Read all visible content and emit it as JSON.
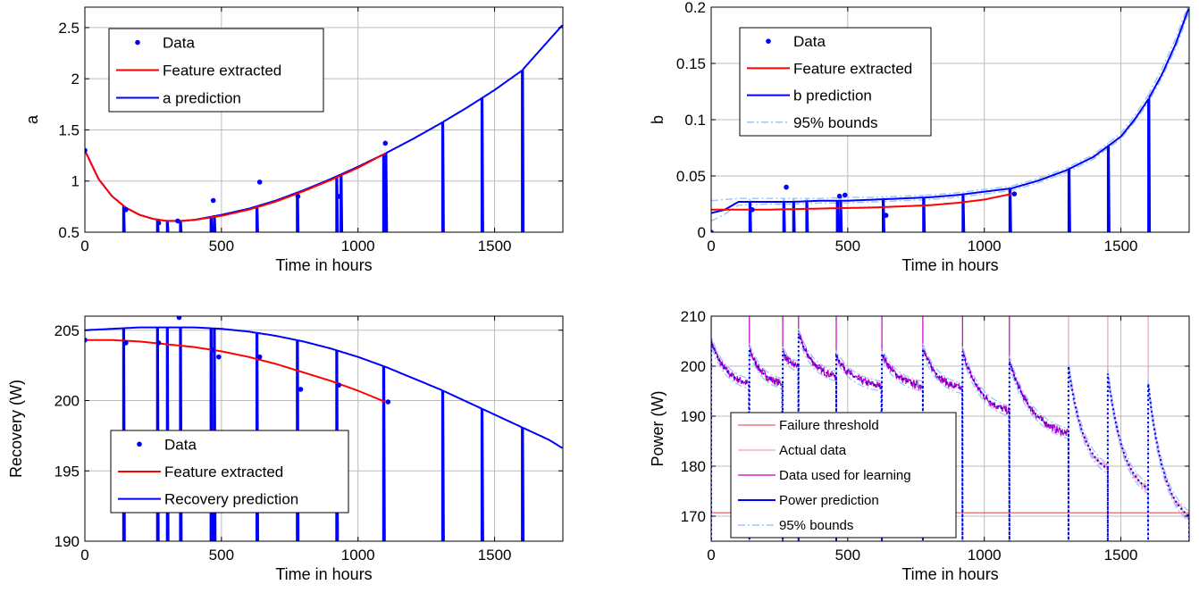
{
  "colors": {
    "data": "#0000ff",
    "feature": "#ff0000",
    "prediction": "#0000ff",
    "bounds": "#9dc3ff",
    "threshold": "#e83a3a",
    "actual": "#f59ac8",
    "learning": "#c000c0",
    "grid": "#bdbdbd"
  },
  "chart_data": [
    {
      "id": "a",
      "type": "line",
      "xlabel": "Time in hours",
      "ylabel": "a",
      "xlim": [
        0,
        1750
      ],
      "ylim": [
        0.5,
        2.7
      ],
      "xticks": [
        0,
        500,
        1000,
        1500
      ],
      "yticks": [
        0.5,
        1,
        1.5,
        2,
        2.5
      ],
      "ytick_labels": [
        "0.5",
        "1",
        "1.5",
        "2",
        "2.5"
      ],
      "grid": true,
      "legend": {
        "position": "top-left",
        "entries": [
          "Data",
          "Feature extracted",
          "a prediction"
        ]
      },
      "series": [
        {
          "name": "Data",
          "style": "markers",
          "x": [
            0,
            150,
            270,
            340,
            470,
            640,
            780,
            930,
            1100
          ],
          "y": [
            1.3,
            0.72,
            0.59,
            0.61,
            0.81,
            0.99,
            0.85,
            0.85,
            1.37
          ]
        },
        {
          "name": "Feature extracted",
          "style": "line",
          "x": [
            0,
            50,
            100,
            150,
            200,
            250,
            300,
            350,
            400,
            500,
            600,
            700,
            800,
            900,
            1000,
            1100
          ],
          "y": [
            1.3,
            1.02,
            0.85,
            0.74,
            0.67,
            0.63,
            0.61,
            0.61,
            0.62,
            0.66,
            0.72,
            0.8,
            0.9,
            1.01,
            1.13,
            1.27
          ]
        },
        {
          "name": "a prediction",
          "style": "line",
          "x": [
            0,
            50,
            100,
            150,
            200,
            250,
            300,
            350,
            400,
            500,
            600,
            700,
            800,
            900,
            1000,
            1100,
            1200,
            1300,
            1400,
            1500,
            1600,
            1700,
            1750
          ],
          "y": [
            1.3,
            1.02,
            0.85,
            0.74,
            0.67,
            0.63,
            0.61,
            0.61,
            0.62,
            0.67,
            0.73,
            0.81,
            0.91,
            1.02,
            1.14,
            1.27,
            1.41,
            1.56,
            1.72,
            1.89,
            2.08,
            2.38,
            2.53
          ],
          "dropouts": [
            140,
            262,
            300,
            345,
            458,
            470,
            625,
            775,
            920,
            935,
            1092,
            1100,
            1308,
            1452,
            1600
          ]
        }
      ]
    },
    {
      "id": "b",
      "type": "line",
      "xlabel": "Time in hours",
      "ylabel": "b",
      "xlim": [
        0,
        1750
      ],
      "ylim": [
        0,
        0.2
      ],
      "xticks": [
        0,
        500,
        1000,
        1500
      ],
      "yticks": [
        0,
        0.05,
        0.1,
        0.15,
        0.2
      ],
      "ytick_labels": [
        "0",
        "0.05",
        "0.1",
        "0.15",
        "0.2"
      ],
      "grid": true,
      "legend": {
        "position": "top-left",
        "entries": [
          "Data",
          "Feature extracted",
          "b prediction",
          "95% bounds"
        ]
      },
      "series": [
        {
          "name": "Data",
          "style": "markers",
          "x": [
            0,
            150,
            275,
            470,
            490,
            640,
            1110
          ],
          "y": [
            0.0,
            0.02,
            0.04,
            0.032,
            0.033,
            0.015,
            0.034
          ]
        },
        {
          "name": "Feature extracted",
          "style": "line",
          "x": [
            0,
            200,
            400,
            600,
            800,
            900,
            1000,
            1100
          ],
          "y": [
            0.02,
            0.02,
            0.021,
            0.022,
            0.024,
            0.026,
            0.029,
            0.034
          ]
        },
        {
          "name": "b prediction",
          "style": "line",
          "x": [
            0,
            50,
            100,
            200,
            300,
            400,
            500,
            600,
            700,
            800,
            900,
            1000,
            1100,
            1200,
            1300,
            1400,
            1500,
            1550,
            1600,
            1650,
            1700,
            1750
          ],
          "y": [
            0.017,
            0.02,
            0.027,
            0.027,
            0.027,
            0.028,
            0.028,
            0.029,
            0.03,
            0.031,
            0.033,
            0.036,
            0.039,
            0.046,
            0.055,
            0.067,
            0.085,
            0.1,
            0.118,
            0.14,
            0.167,
            0.2
          ],
          "dropouts": [
            140,
            262,
            300,
            345,
            458,
            470,
            625,
            775,
            920,
            1092,
            1308,
            1452,
            1600
          ]
        },
        {
          "name": "95% bounds",
          "style": "dashdot",
          "x": [
            0,
            50,
            100,
            200,
            300,
            400,
            500,
            600,
            700,
            800,
            900,
            1000,
            1100,
            1200,
            1300,
            1400,
            1500,
            1550,
            1600,
            1650,
            1700,
            1750
          ],
          "y_low": [
            0.01,
            0.016,
            0.024,
            0.025,
            0.025,
            0.026,
            0.026,
            0.027,
            0.028,
            0.029,
            0.031,
            0.034,
            0.037,
            0.044,
            0.053,
            0.065,
            0.083,
            0.098,
            0.115,
            0.137,
            0.163,
            0.196
          ],
          "y_high": [
            0.028,
            0.029,
            0.03,
            0.03,
            0.03,
            0.03,
            0.031,
            0.031,
            0.032,
            0.033,
            0.035,
            0.038,
            0.041,
            0.048,
            0.057,
            0.069,
            0.088,
            0.103,
            0.122,
            0.145,
            0.172,
            0.204
          ]
        }
      ]
    },
    {
      "id": "recovery",
      "type": "line",
      "xlabel": "Time in hours",
      "ylabel": "Recovery (W)",
      "xlim": [
        0,
        1750
      ],
      "ylim": [
        190,
        206
      ],
      "xticks": [
        0,
        500,
        1000,
        1500
      ],
      "yticks": [
        190,
        195,
        200,
        205
      ],
      "ytick_labels": [
        "190",
        "195",
        "200",
        "205"
      ],
      "grid": true,
      "legend": {
        "position": "bottom-left",
        "entries": [
          "Data",
          "Feature extracted",
          "Recovery prediction"
        ]
      },
      "series": [
        {
          "name": "Data",
          "style": "markers",
          "x": [
            0,
            150,
            270,
            345,
            470,
            490,
            640,
            790,
            930,
            1110
          ],
          "y": [
            204.3,
            204.1,
            204.1,
            205.9,
            203.6,
            203.1,
            203.1,
            200.8,
            201.1,
            199.9
          ]
        },
        {
          "name": "Feature extracted",
          "style": "line",
          "x": [
            0,
            100,
            200,
            300,
            400,
            500,
            600,
            700,
            800,
            900,
            1000,
            1100
          ],
          "y": [
            204.3,
            204.3,
            204.2,
            204.0,
            203.8,
            203.5,
            203.1,
            202.6,
            202.0,
            201.4,
            200.7,
            199.9
          ]
        },
        {
          "name": "Recovery prediction",
          "style": "line",
          "x": [
            0,
            100,
            200,
            300,
            400,
            500,
            600,
            700,
            800,
            900,
            1000,
            1100,
            1200,
            1300,
            1400,
            1500,
            1600,
            1700,
            1750
          ],
          "y": [
            205.0,
            205.1,
            205.2,
            205.2,
            205.2,
            205.1,
            204.9,
            204.6,
            204.2,
            203.7,
            203.1,
            202.4,
            201.6,
            200.8,
            199.9,
            199.0,
            198.1,
            197.2,
            196.6
          ],
          "dropouts": [
            140,
            262,
            300,
            345,
            458,
            470,
            625,
            775,
            920,
            1092,
            1308,
            1452,
            1600
          ]
        }
      ]
    },
    {
      "id": "power",
      "type": "line",
      "xlabel": "Time in hours",
      "ylabel": "Power (W)",
      "xlim": [
        0,
        1750
      ],
      "ylim": [
        165,
        210
      ],
      "xticks": [
        0,
        500,
        1000,
        1500
      ],
      "yticks": [
        170,
        180,
        190,
        200,
        210
      ],
      "ytick_labels": [
        "170",
        "180",
        "190",
        "200",
        "210"
      ],
      "grid": true,
      "legend": {
        "position": "bottom-left",
        "entries": [
          "Failure threshold",
          "Actual data",
          "Data used for learning",
          "Power prediction",
          "95% bounds"
        ]
      },
      "failure_threshold": 170.7,
      "cycles": [
        {
          "start": 0,
          "end": 140,
          "y_start": 205.0,
          "y_end": 196.5
        },
        {
          "start": 140,
          "end": 262,
          "y_start": 203.5,
          "y_end": 196.5
        },
        {
          "start": 262,
          "end": 320,
          "y_start": 203.0,
          "y_end": 200.0
        },
        {
          "start": 320,
          "end": 458,
          "y_start": 206.5,
          "y_end": 198.0
        },
        {
          "start": 458,
          "end": 625,
          "y_start": 202.0,
          "y_end": 196.0
        },
        {
          "start": 625,
          "end": 775,
          "y_start": 202.5,
          "y_end": 196.0
        },
        {
          "start": 775,
          "end": 920,
          "y_start": 203.5,
          "y_end": 195.5
        },
        {
          "start": 920,
          "end": 1092,
          "y_start": 203.0,
          "y_end": 191.0
        },
        {
          "start": 1092,
          "end": 1308,
          "y_start": 201.0,
          "y_end": 186.5
        },
        {
          "start": 1308,
          "end": 1452,
          "y_start": 200.0,
          "y_end": 179.5
        },
        {
          "start": 1452,
          "end": 1600,
          "y_start": 198.5,
          "y_end": 175.5
        },
        {
          "start": 1600,
          "end": 1750,
          "y_start": 196.5,
          "y_end": 170.0
        }
      ],
      "learning_end": 1100
    }
  ]
}
